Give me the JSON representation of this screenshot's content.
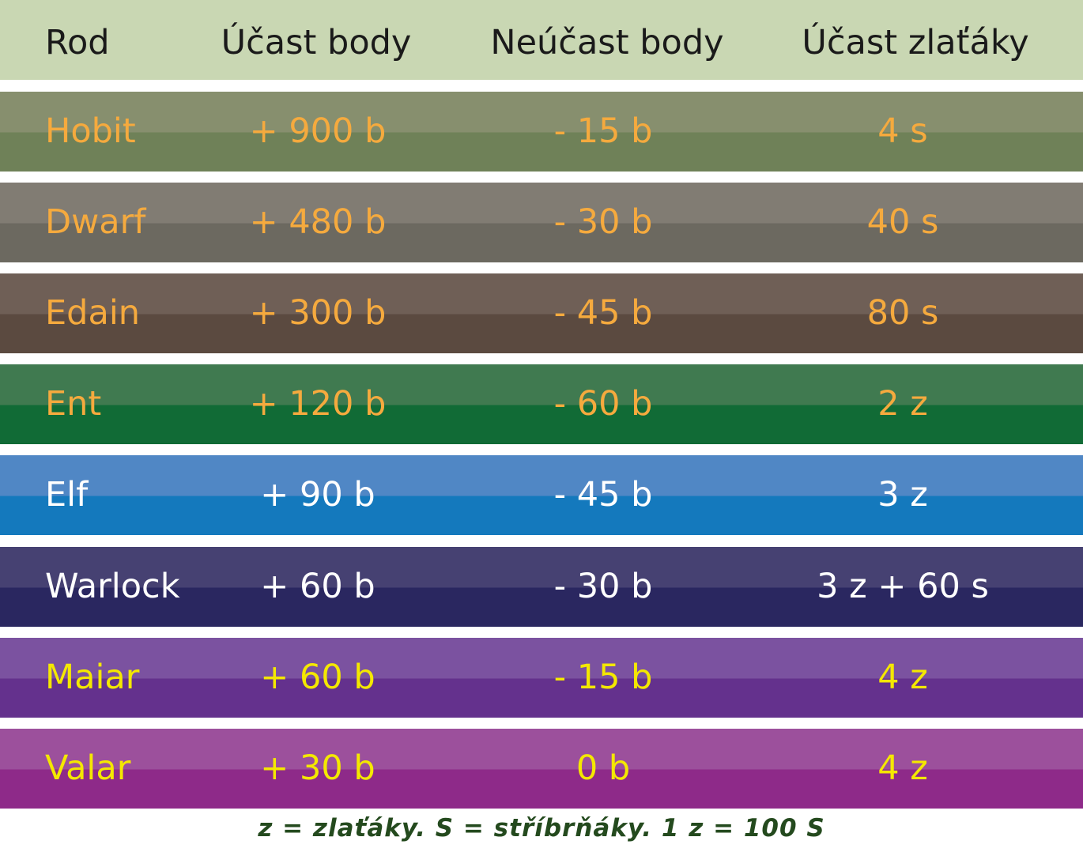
{
  "table": {
    "header": [
      "Rod",
      "Účast body",
      "Neúčast body",
      "Účast zlaťáky"
    ],
    "rows": [
      [
        "Hobit",
        "+ 900 b",
        "- 15 b",
        "4 s"
      ],
      [
        "Dwarf",
        "+ 480 b",
        "- 30 b",
        "40 s"
      ],
      [
        "Edain",
        "+ 300 b",
        "- 45 b",
        "80 s"
      ],
      [
        "Ent",
        "+ 120 b",
        "- 60 b",
        "2 z"
      ],
      [
        "Elf",
        "+ 90 b",
        "- 45 b",
        "3 z"
      ],
      [
        "Warlock",
        "+ 60 b",
        "- 30 b",
        "3 z + 60 s"
      ],
      [
        "Maiar",
        "+ 60 b",
        "- 15 b",
        "4 z"
      ],
      [
        "Valar",
        "+ 30 b",
        "0 b",
        "4 z"
      ]
    ]
  },
  "footer": {
    "note": "z = zlaťáky. S  = stříbrňáky. 1 z = 100 S"
  }
}
